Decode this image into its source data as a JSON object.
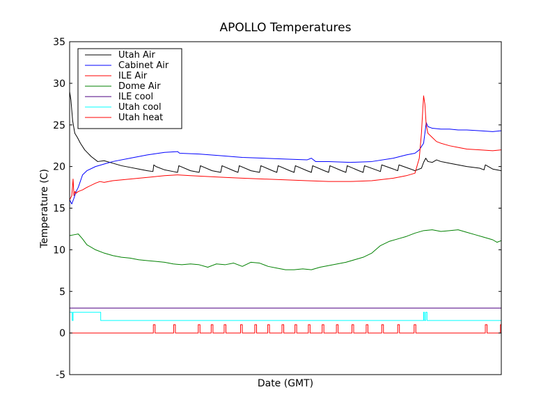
{
  "chart_data": {
    "type": "line",
    "title": "APOLLO Temperatures",
    "xlabel": "Date (GMT)",
    "ylabel": "Temperature (C)",
    "ylim": [
      -5,
      35
    ],
    "xlim": [
      0,
      100
    ],
    "yticks": [
      -5,
      0,
      5,
      10,
      15,
      20,
      25,
      30,
      35
    ],
    "ytick_labels": [
      "-5",
      "0",
      "5",
      "10",
      "15",
      "20",
      "25",
      "30",
      "35"
    ],
    "grid": false,
    "legend_position": "top-left",
    "series": [
      {
        "name": "Utah Air",
        "color": "#000000",
        "x": [
          0,
          0.3,
          0.7,
          1.2,
          1.8,
          2.5,
          3.5,
          5,
          6.5,
          8,
          10,
          12,
          14,
          16,
          18,
          19.3,
          19.5,
          20,
          22,
          24,
          25,
          25.3,
          28,
          30,
          30.3,
          33,
          35,
          35.3,
          38,
          39,
          39.3,
          42,
          44,
          44.3,
          47,
          48,
          48.3,
          51,
          52,
          52.3,
          55,
          56,
          56.3,
          59,
          60,
          60.3,
          63,
          64,
          64.3,
          67,
          68,
          68.3,
          71,
          72,
          72.3,
          75,
          76,
          76.3,
          79,
          80,
          80.5,
          81.5,
          82,
          82.5,
          83,
          84,
          85,
          86,
          88,
          90,
          92,
          95,
          96,
          96.3,
          98,
          100
        ],
        "y": [
          29,
          28,
          25.5,
          24,
          23.5,
          22.8,
          22,
          21.2,
          20.6,
          20.7,
          20.4,
          20.1,
          19.9,
          19.7,
          19.5,
          19.4,
          20.2,
          20,
          19.6,
          19.4,
          19.3,
          20.1,
          19.5,
          19.3,
          20.1,
          19.5,
          19.3,
          20.1,
          19.5,
          19.3,
          20.1,
          19.5,
          19.3,
          20.1,
          19.5,
          19.3,
          20.1,
          19.5,
          19.3,
          20.1,
          19.5,
          19.3,
          20.1,
          19.5,
          19.3,
          20.1,
          19.5,
          19.3,
          20.1,
          19.5,
          19.3,
          20.1,
          19.6,
          19.4,
          20.2,
          19.7,
          19.5,
          20.2,
          19.7,
          19.5,
          19.6,
          19.8,
          20.5,
          21,
          20.6,
          20.5,
          20.8,
          20.6,
          20.4,
          20.2,
          20,
          19.8,
          19.6,
          20.2,
          19.7,
          19.5
        ]
      },
      {
        "name": "Cabinet Air",
        "color": "#0000ff",
        "x": [
          0,
          0.5,
          1,
          1.5,
          2,
          3,
          4,
          6,
          8,
          10,
          14,
          18,
          22,
          25,
          25.5,
          30,
          35,
          40,
          45,
          50,
          55,
          56,
          57,
          60,
          65,
          70,
          75,
          78,
          80,
          81,
          82,
          82.3,
          82.6,
          83,
          84,
          86,
          88,
          90,
          92,
          95,
          98,
          100
        ],
        "y": [
          16,
          15.5,
          16.2,
          17,
          17.5,
          19,
          19.5,
          20,
          20.3,
          20.6,
          21,
          21.4,
          21.7,
          21.8,
          21.6,
          21.5,
          21.3,
          21.1,
          21,
          20.9,
          20.8,
          21,
          20.6,
          20.6,
          20.5,
          20.6,
          21,
          21.4,
          21.6,
          22,
          22.8,
          24,
          25.3,
          24.8,
          24.6,
          24.5,
          24.5,
          24.4,
          24.4,
          24.3,
          24.2,
          24.3
        ]
      },
      {
        "name": "ILE Air",
        "color": "#ff0000",
        "x": [
          0,
          0.5,
          0.8,
          1,
          1.2,
          1.5,
          2,
          3,
          4,
          6,
          7,
          8,
          10,
          14,
          18,
          22,
          25,
          28,
          32,
          36,
          40,
          45,
          50,
          55,
          60,
          65,
          70,
          75,
          78,
          80,
          81,
          81.5,
          82,
          82.3,
          82.6,
          83,
          84,
          85,
          86,
          88,
          90,
          92,
          95,
          98,
          100
        ],
        "y": [
          16,
          16.5,
          18.5,
          16.5,
          17,
          16.8,
          17,
          17.2,
          17.5,
          18,
          18.2,
          18.1,
          18.3,
          18.5,
          18.7,
          18.9,
          19,
          18.9,
          18.8,
          18.7,
          18.6,
          18.5,
          18.4,
          18.3,
          18.2,
          18.2,
          18.3,
          18.6,
          18.9,
          19.2,
          21,
          24,
          28.5,
          27.5,
          25,
          24,
          23.5,
          23,
          22.8,
          22.5,
          22.3,
          22.1,
          22,
          21.9,
          22
        ]
      },
      {
        "name": "Dome Air",
        "color": "#008000",
        "x": [
          0,
          1,
          2,
          3,
          4,
          6,
          8,
          10,
          12,
          14,
          16,
          18,
          20,
          22,
          24,
          26,
          28,
          30,
          32,
          34,
          36,
          38,
          40,
          42,
          44,
          46,
          48,
          50,
          52,
          54,
          56,
          58,
          60,
          62,
          64,
          66,
          68,
          70,
          72,
          74,
          76,
          78,
          80,
          82,
          84,
          86,
          88,
          90,
          92,
          94,
          96,
          98,
          99,
          100
        ],
        "y": [
          11.7,
          11.8,
          11.9,
          11.3,
          10.6,
          10,
          9.6,
          9.3,
          9.1,
          9,
          8.8,
          8.7,
          8.6,
          8.5,
          8.3,
          8.2,
          8.3,
          8.2,
          7.9,
          8.3,
          8.2,
          8.4,
          8.0,
          8.5,
          8.4,
          8.0,
          7.8,
          7.6,
          7.6,
          7.7,
          7.6,
          7.9,
          8.1,
          8.3,
          8.5,
          8.8,
          9.1,
          9.6,
          10.5,
          11,
          11.3,
          11.6,
          12,
          12.3,
          12.4,
          12.2,
          12.3,
          12.4,
          12.1,
          11.8,
          11.5,
          11.2,
          10.9,
          11.1
        ]
      },
      {
        "name": "ILE cool",
        "color": "#4b0082",
        "x": [
          0,
          100
        ],
        "y": [
          3,
          3
        ]
      },
      {
        "name": "Utah cool",
        "color": "#00ffff",
        "x": [
          0,
          0.6,
          0.6,
          0.8,
          0.8,
          1,
          1,
          7.2,
          7.2,
          82,
          82,
          82.2,
          82.2,
          82.5,
          82.5,
          82.8,
          82.8,
          100
        ],
        "y": [
          2.5,
          2.5,
          1.5,
          1.5,
          2.5,
          2.5,
          2.5,
          2.5,
          1.5,
          1.5,
          2.5,
          2.5,
          1.5,
          1.5,
          2.5,
          2.5,
          1.5,
          1.5
        ]
      },
      {
        "name": "Utah heat",
        "color": "#ff0000",
        "x": [
          0,
          19.4,
          19.4,
          19.8,
          19.8,
          24.1,
          24.1,
          24.5,
          24.5,
          29.8,
          29.8,
          30.2,
          30.2,
          32.8,
          32.8,
          33.2,
          33.2,
          35.8,
          35.8,
          36.2,
          36.2,
          39.6,
          39.6,
          40,
          40,
          42.9,
          42.9,
          43.3,
          43.3,
          45.9,
          45.9,
          46.3,
          46.3,
          49.2,
          49.2,
          49.6,
          49.6,
          52.2,
          52.2,
          52.6,
          52.6,
          55.3,
          55.3,
          55.7,
          55.7,
          58.5,
          58.5,
          58.9,
          58.9,
          61.8,
          61.8,
          62.2,
          62.2,
          65.4,
          65.4,
          65.8,
          65.8,
          68.7,
          68.7,
          69.1,
          69.1,
          72.3,
          72.3,
          72.7,
          72.7,
          76,
          76,
          76.4,
          76.4,
          79.8,
          79.8,
          80.2,
          80.2,
          96.3,
          96.3,
          96.7,
          96.7,
          99.8,
          99.8,
          100
        ],
        "y": [
          0,
          0,
          1,
          1,
          0,
          0,
          1,
          1,
          0,
          0,
          1,
          1,
          0,
          0,
          1,
          1,
          0,
          0,
          1,
          1,
          0,
          0,
          1,
          1,
          0,
          0,
          1,
          1,
          0,
          0,
          1,
          1,
          0,
          0,
          1,
          1,
          0,
          0,
          1,
          1,
          0,
          0,
          1,
          1,
          0,
          0,
          1,
          1,
          0,
          0,
          1,
          1,
          0,
          0,
          1,
          1,
          0,
          0,
          1,
          1,
          0,
          0,
          1,
          1,
          0,
          0,
          1,
          1,
          0,
          0,
          1,
          1,
          0,
          0,
          1,
          1,
          0,
          0,
          1,
          1
        ]
      }
    ]
  }
}
